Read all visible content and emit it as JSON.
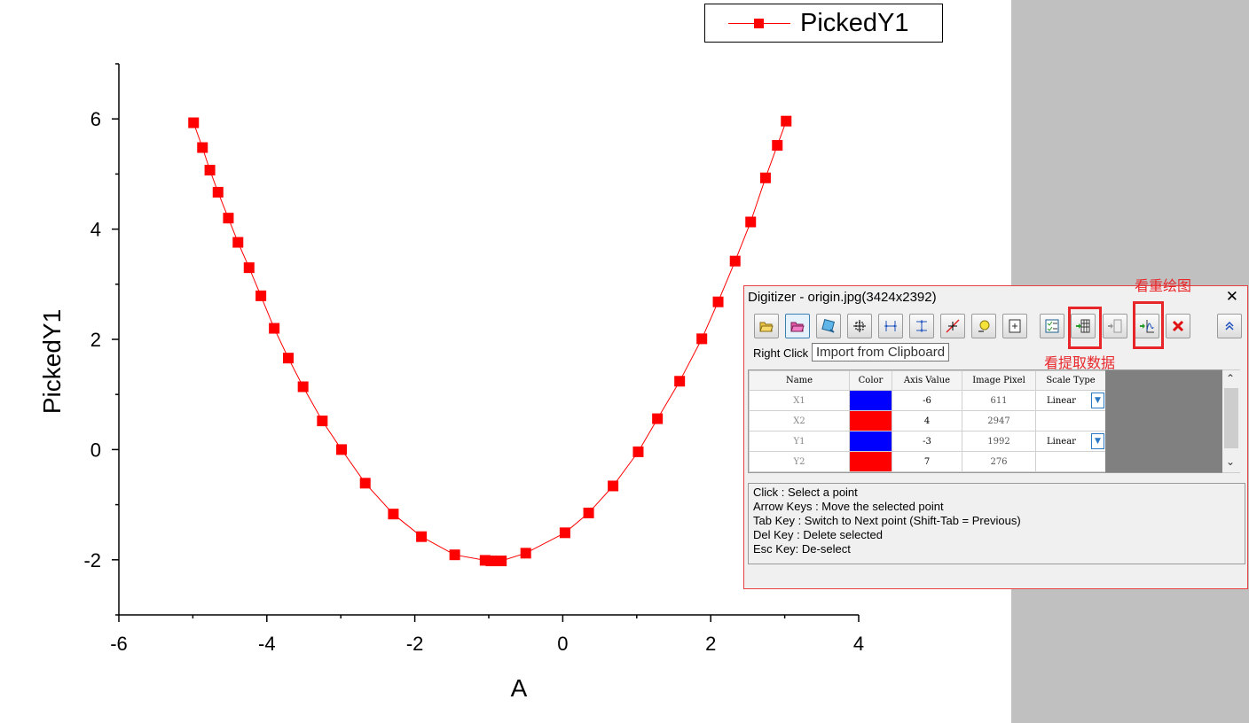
{
  "chart_data": {
    "type": "line",
    "xlabel": "A",
    "ylabel": "PickedY1",
    "xlim": [
      -6,
      4
    ],
    "ylim": [
      -3,
      7
    ],
    "xticks": [
      -6,
      -4,
      -2,
      0,
      2,
      4
    ],
    "yticks": [
      -2,
      0,
      2,
      4,
      6
    ],
    "xtick_labels": [
      "-6",
      "-4",
      "-2",
      "0",
      "2",
      "4"
    ],
    "ytick_labels": [
      "-2",
      "0",
      "2",
      "4",
      "6"
    ],
    "legend": "top-right",
    "grid": false,
    "series": [
      {
        "name": "PickedY1",
        "color": "#ff0000",
        "marker": "square",
        "x": [
          -4.99,
          -4.87,
          -4.77,
          -4.66,
          -4.52,
          -4.39,
          -4.24,
          -4.08,
          -3.9,
          -3.71,
          -3.51,
          -3.25,
          -2.99,
          -2.67,
          -2.29,
          -1.91,
          -1.46,
          -1.05,
          -0.97,
          -0.83,
          -0.5,
          0.03,
          0.35,
          0.68,
          1.02,
          1.28,
          1.58,
          1.88,
          2.1,
          2.33,
          2.54,
          2.74,
          2.9,
          3.02
        ],
        "y": [
          5.93,
          5.48,
          5.07,
          4.67,
          4.2,
          3.76,
          3.3,
          2.79,
          2.2,
          1.66,
          1.14,
          0.52,
          0.0,
          -0.61,
          -1.17,
          -1.58,
          -1.91,
          -2.01,
          -2.02,
          -2.02,
          -1.88,
          -1.51,
          -1.15,
          -0.66,
          -0.04,
          0.56,
          1.24,
          2.01,
          2.68,
          3.42,
          4.13,
          4.93,
          5.52,
          5.96
        ]
      }
    ]
  },
  "legend_label": "PickedY1",
  "digitizer": {
    "title": "Digitizer - origin.jpg(3424x2392)",
    "close_glyph": "✕",
    "toolbar": [
      {
        "icon": "open-folder-icon"
      },
      {
        "icon": "import-clipboard-icon"
      },
      {
        "icon": "rotate-image-icon"
      },
      {
        "icon": "set-xy-axes-icon"
      },
      {
        "icon": "set-x-axis-icon"
      },
      {
        "icon": "set-y-axis-icon"
      },
      {
        "icon": "pick-points-icon"
      },
      {
        "icon": "auto-trace-icon"
      },
      {
        "icon": "zoom-icon"
      },
      {
        "icon": "checklist-icon"
      },
      {
        "icon": "go-to-data-icon"
      },
      {
        "icon": "export-data-icon"
      },
      {
        "icon": "go-to-graph-icon"
      },
      {
        "icon": "delete-icon"
      },
      {
        "icon": "collapse-icon"
      }
    ],
    "right_click_text": "Right Click",
    "tooltip": "Import from Clipboard",
    "table": {
      "headers": [
        "Name",
        "Color",
        "Axis Value",
        "Image Pixel",
        "Scale Type"
      ],
      "rows": [
        {
          "name": "X1",
          "color": "#0000ff",
          "axis_value": "-6",
          "image_pixel": "611",
          "scale_type": "Linear"
        },
        {
          "name": "X2",
          "color": "#ff0000",
          "axis_value": "4",
          "image_pixel": "2947",
          "scale_type": ""
        },
        {
          "name": "Y1",
          "color": "#0000ff",
          "axis_value": "-3",
          "image_pixel": "1992",
          "scale_type": "Linear"
        },
        {
          "name": "Y2",
          "color": "#ff0000",
          "axis_value": "7",
          "image_pixel": "276",
          "scale_type": ""
        }
      ]
    },
    "help_lines": [
      "Click : Select a point",
      "Arrow Keys : Move the selected point",
      "Tab Key : Switch to Next point (Shift-Tab = Previous)",
      "Del Key : Delete selected",
      "Esc Key: De-select"
    ]
  },
  "annotations": {
    "goto_graph": "看重绘图",
    "goto_data": "看提取数据"
  }
}
